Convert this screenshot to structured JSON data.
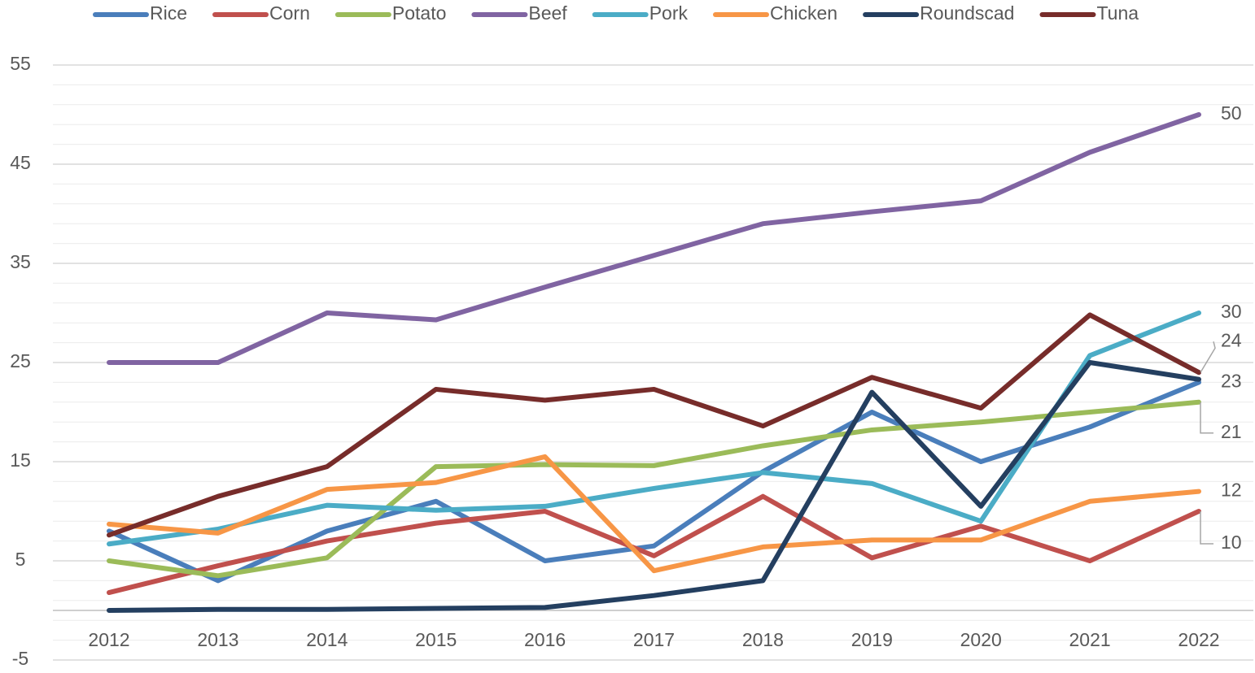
{
  "chart_data": {
    "type": "line",
    "categories": [
      "2012",
      "2013",
      "2014",
      "2015",
      "2016",
      "2017",
      "2018",
      "2019",
      "2020",
      "2021",
      "2022"
    ],
    "series": [
      {
        "name": "Rice",
        "color": "#4a7ebb",
        "values": [
          8,
          3,
          8,
          11,
          5,
          6.5,
          14,
          20,
          15,
          18.5,
          23
        ],
        "end_label": true
      },
      {
        "name": "Corn",
        "color": "#c0504d",
        "values": [
          1.8,
          4.5,
          7,
          8.8,
          10,
          5.5,
          11.5,
          5.3,
          8.5,
          5,
          10
        ],
        "end_label": true
      },
      {
        "name": "Potato",
        "color": "#9bbb59",
        "values": [
          5,
          3.5,
          5.3,
          14.5,
          14.7,
          14.6,
          16.6,
          18.2,
          19,
          20,
          21
        ],
        "end_label": true
      },
      {
        "name": "Beef",
        "color": "#8064a2",
        "values": [
          25,
          25,
          30,
          29.3,
          32.6,
          35.8,
          39,
          40.2,
          41.3,
          46.2,
          50
        ],
        "end_label": true
      },
      {
        "name": "Pork",
        "color": "#4bacc6",
        "values": [
          6.7,
          8.2,
          10.6,
          10.1,
          10.5,
          12.3,
          13.9,
          12.8,
          9,
          25.7,
          30
        ],
        "end_label": true
      },
      {
        "name": "Chicken",
        "color": "#f79646",
        "values": [
          8.7,
          7.8,
          12.2,
          12.9,
          15.5,
          4,
          6.4,
          7.1,
          7.1,
          11,
          12
        ],
        "end_label": true
      },
      {
        "name": "Roundscad",
        "color": "#243f60",
        "values": [
          0,
          0.1,
          0.1,
          0.2,
          0.3,
          1.5,
          3,
          22,
          10.5,
          25,
          23.3
        ],
        "end_label": false
      },
      {
        "name": "Tuna",
        "color": "#772c2a",
        "values": [
          7.6,
          11.5,
          14.5,
          22.3,
          21.2,
          22.3,
          18.6,
          23.5,
          20.4,
          29.8,
          24
        ],
        "end_label": true
      }
    ],
    "ylim": [
      -5,
      55
    ],
    "yticks": [
      -5,
      5,
      15,
      25,
      35,
      45,
      55
    ],
    "minor_yticks": [
      -3,
      -1,
      1,
      3,
      7,
      9,
      11,
      13,
      17,
      19,
      21,
      23,
      27,
      29,
      31,
      33,
      37,
      39,
      41,
      43,
      47,
      49,
      51,
      53
    ],
    "grid": true,
    "legend": "top"
  }
}
